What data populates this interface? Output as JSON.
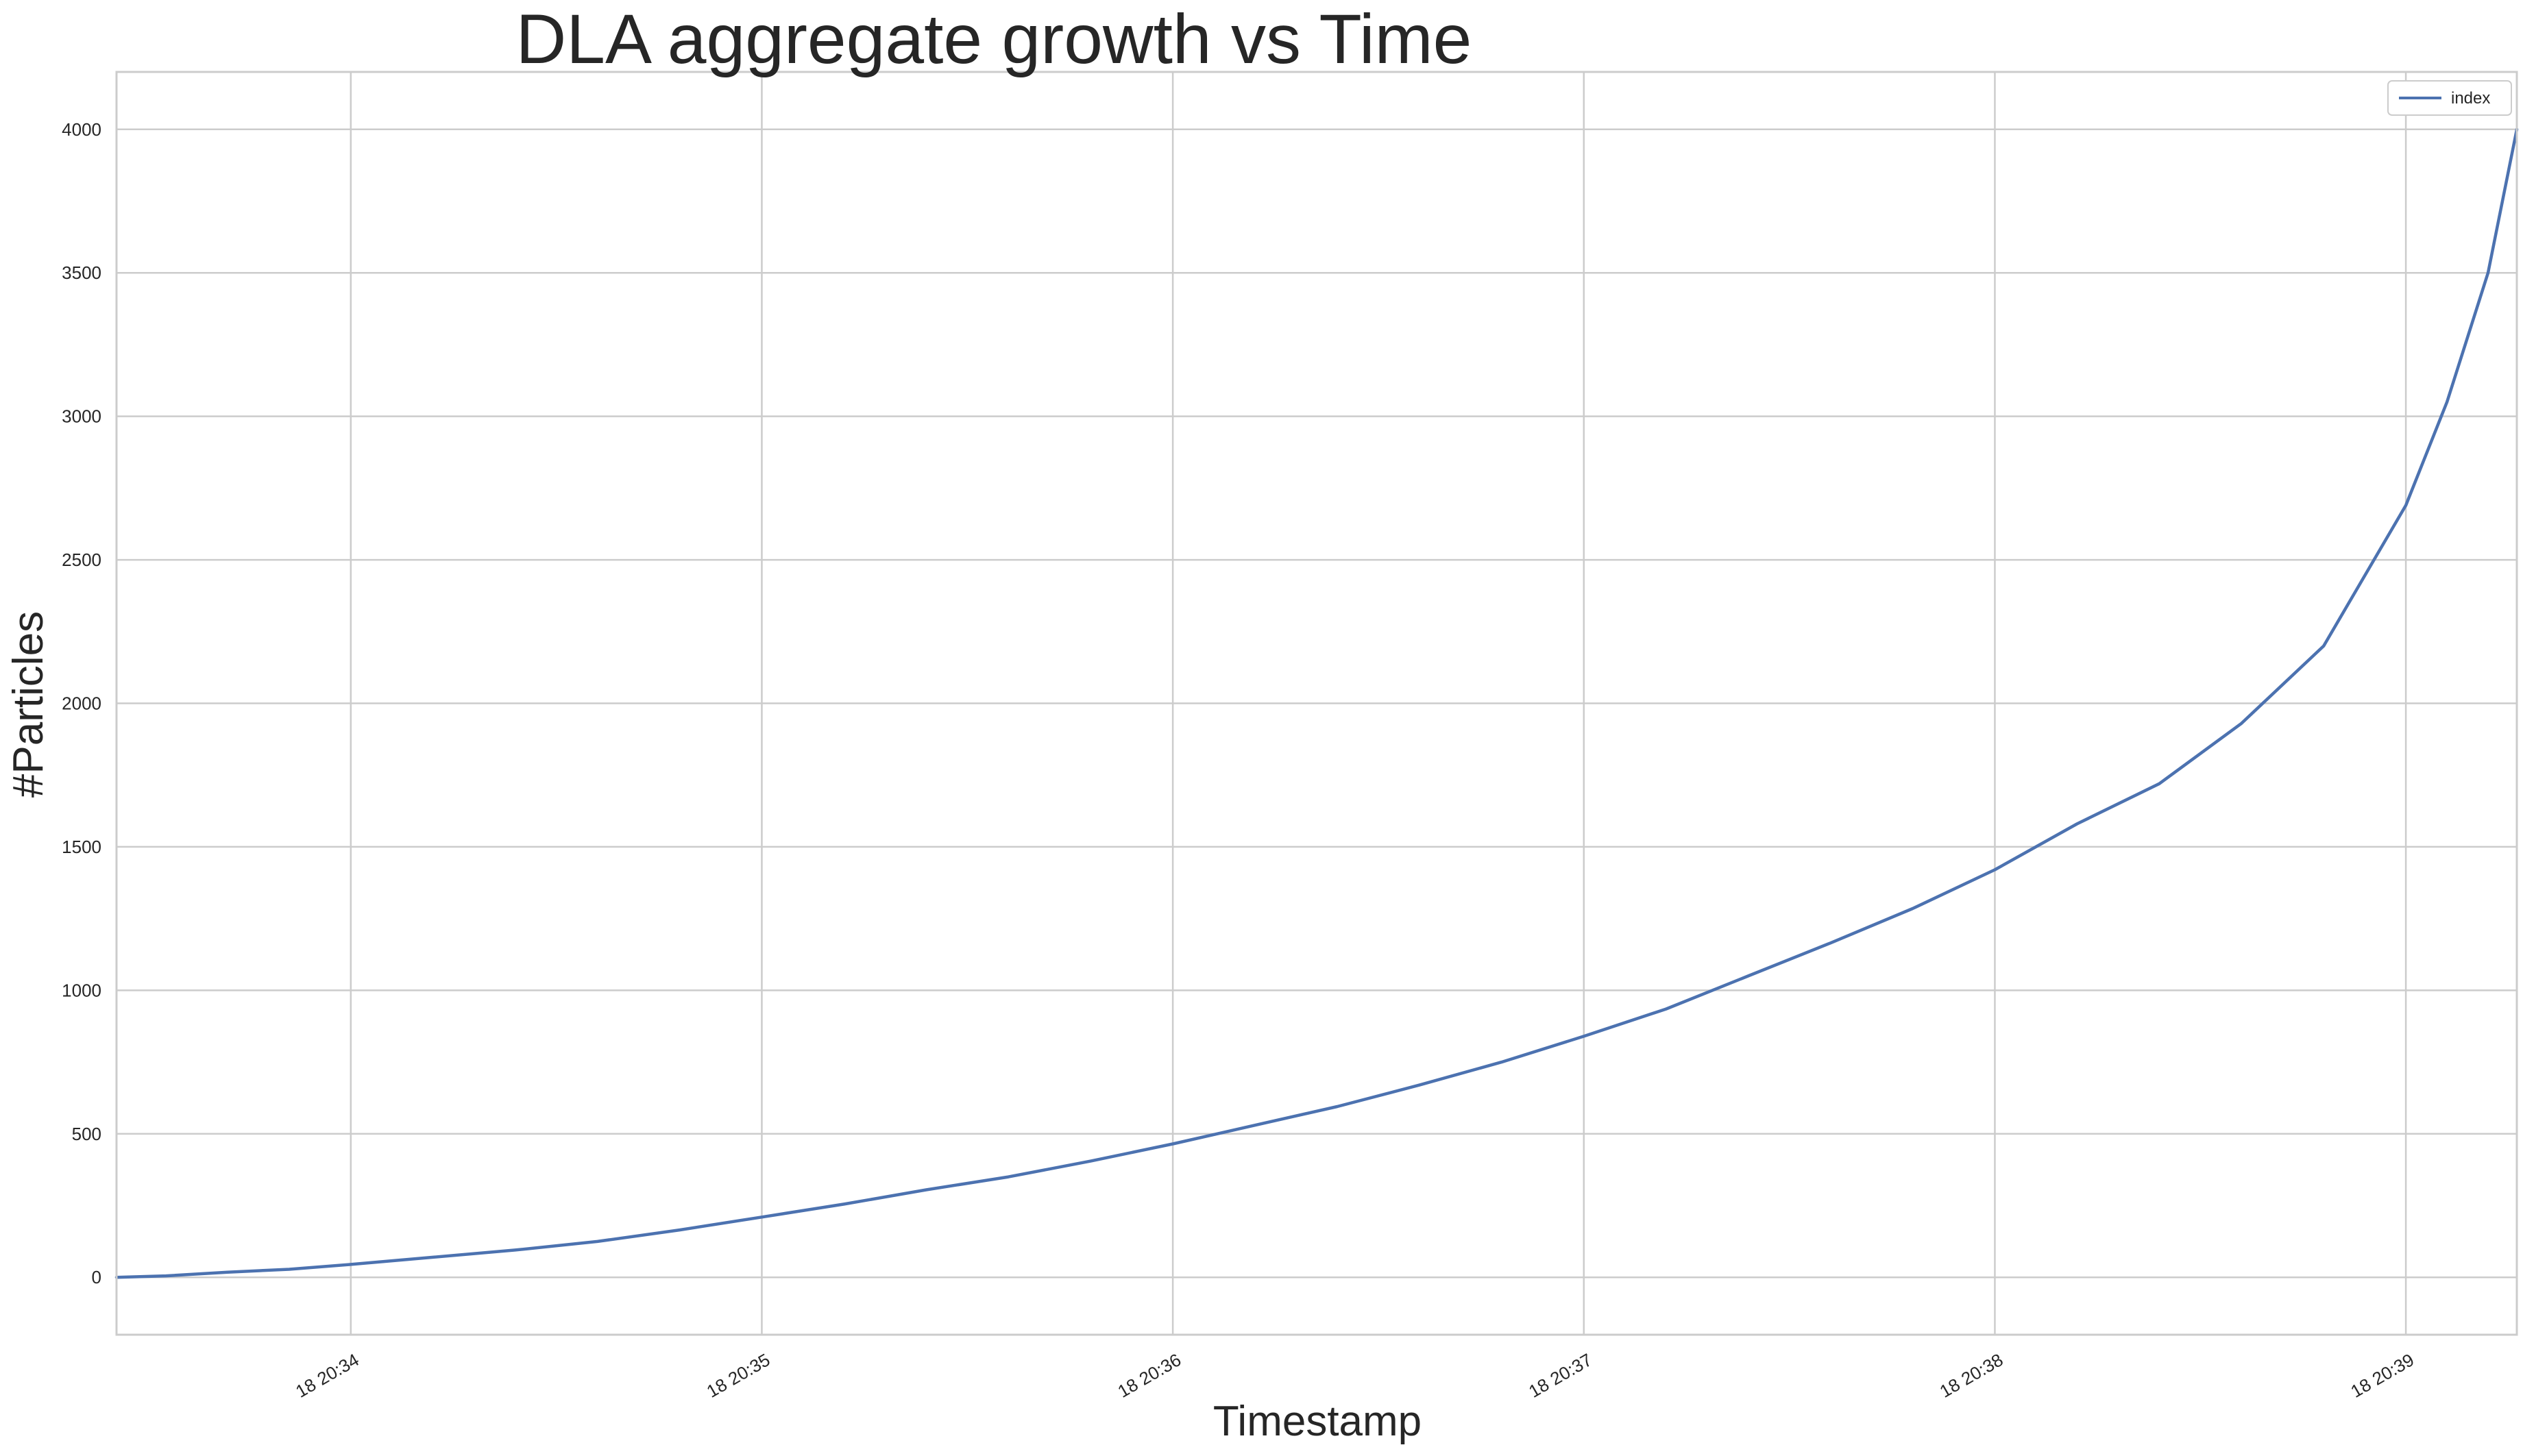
{
  "chart_data": {
    "type": "line",
    "title": "DLA aggregate growth vs Time",
    "xlabel": "Timestamp",
    "ylabel": "#Particles",
    "x_units": "minutes past 20:33 (day 18)",
    "xlim": [
      0.43,
      6.27
    ],
    "ylim": [
      -200,
      4200
    ],
    "x_ticks": [
      {
        "value": 1,
        "label": "18 20:34"
      },
      {
        "value": 2,
        "label": "18 20:35"
      },
      {
        "value": 3,
        "label": "18 20:36"
      },
      {
        "value": 4,
        "label": "18 20:37"
      },
      {
        "value": 5,
        "label": "18 20:38"
      },
      {
        "value": 6,
        "label": "18 20:39"
      }
    ],
    "y_ticks": [
      0,
      500,
      1000,
      1500,
      2000,
      2500,
      3000,
      3500,
      4000
    ],
    "grid": true,
    "legend_position": "top-right",
    "series": [
      {
        "name": "index",
        "color": "#4c72b0",
        "points": [
          [
            0.43,
            0
          ],
          [
            0.55,
            5
          ],
          [
            0.7,
            18
          ],
          [
            0.85,
            28
          ],
          [
            1.0,
            45
          ],
          [
            1.2,
            70
          ],
          [
            1.4,
            95
          ],
          [
            1.6,
            125
          ],
          [
            1.8,
            165
          ],
          [
            2.0,
            210
          ],
          [
            2.2,
            255
          ],
          [
            2.4,
            305
          ],
          [
            2.6,
            350
          ],
          [
            2.8,
            405
          ],
          [
            3.0,
            465
          ],
          [
            3.2,
            530
          ],
          [
            3.4,
            595
          ],
          [
            3.6,
            670
          ],
          [
            3.8,
            750
          ],
          [
            4.0,
            840
          ],
          [
            4.2,
            935
          ],
          [
            4.4,
            1050
          ],
          [
            4.6,
            1165
          ],
          [
            4.8,
            1285
          ],
          [
            5.0,
            1420
          ],
          [
            5.2,
            1580
          ],
          [
            5.4,
            1720
          ],
          [
            5.6,
            1930
          ],
          [
            5.8,
            2200
          ],
          [
            6.0,
            2690
          ],
          [
            6.1,
            3050
          ],
          [
            6.2,
            3500
          ],
          [
            6.27,
            4000
          ]
        ]
      }
    ]
  }
}
